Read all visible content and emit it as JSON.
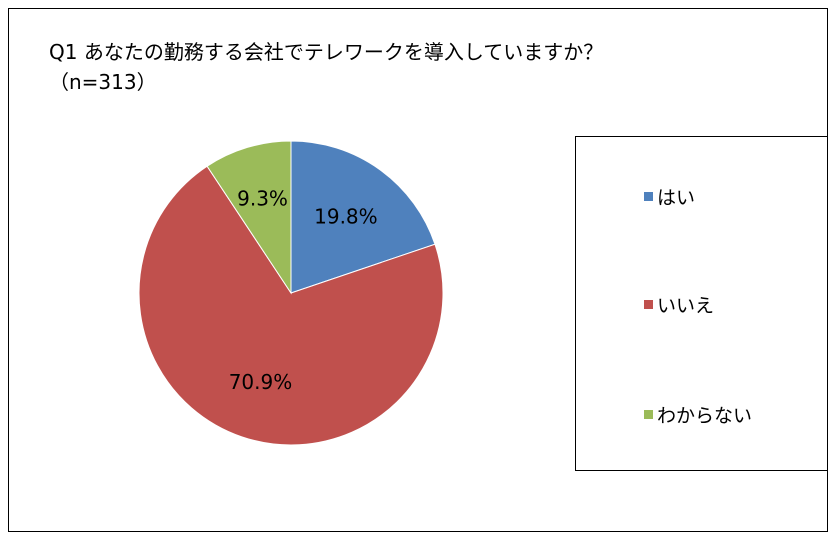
{
  "chart_data": {
    "type": "pie",
    "title": "Q1 あなたの勤務する会社でテレワークを導入していますか？",
    "subtitle": "（n=313）",
    "categories": [
      "はい",
      "いいえ",
      "わからない"
    ],
    "values": [
      19.8,
      70.9,
      9.3
    ],
    "labels": [
      "19.8%",
      "70.9%",
      "9.3%"
    ],
    "colors": [
      "#4F81BD",
      "#C0504D",
      "#9BBB59"
    ],
    "legend_placement": "right"
  }
}
